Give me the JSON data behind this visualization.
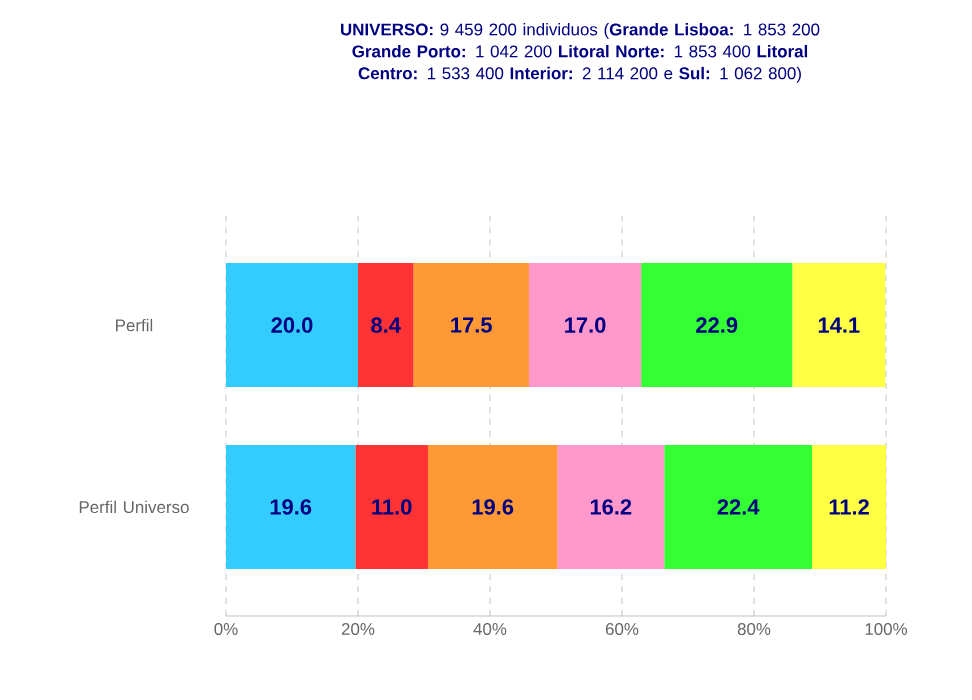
{
  "chart_data": {
    "type": "bar",
    "orientation": "horizontal",
    "stacked": true,
    "title": "**UNIVERSO:** 9 459 200 individuos (**Grande Lisboa:** 1 853 200 **Grande Porto:** 1 042 200  **Litoral Norte:** 1 853 400 **Litoral Centro:** 1 533 400 **Interior:** 2 114 200 e **Sul:** 1 062 800)",
    "categories": [
      "Perfil",
      "Perfil Universo"
    ],
    "series": [
      {
        "color": "#33ccff",
        "values": [
          20.0,
          19.6
        ],
        "value_labels": [
          "20.0",
          "19.6"
        ]
      },
      {
        "color": "#ff3333",
        "values": [
          8.4,
          11.0
        ],
        "value_labels": [
          "8.4",
          "11.0"
        ]
      },
      {
        "color": "#ff9933",
        "values": [
          17.5,
          19.6
        ],
        "value_labels": [
          "17.5",
          "19.6"
        ]
      },
      {
        "color": "#ff99cc",
        "values": [
          17.0,
          16.2
        ],
        "value_labels": [
          "17.0",
          "16.2"
        ]
      },
      {
        "color": "#33ff33",
        "values": [
          22.9,
          22.4
        ],
        "value_labels": [
          "22.9",
          "22.4"
        ]
      },
      {
        "color": "#ffff44",
        "values": [
          14.1,
          11.2
        ],
        "value_labels": [
          "14.1",
          "11.2"
        ]
      }
    ],
    "xlim": [
      0,
      100
    ],
    "xticks": [
      {
        "value": 0,
        "label": "0%"
      },
      {
        "value": 20,
        "label": "20%"
      },
      {
        "value": 40,
        "label": "40%"
      },
      {
        "value": 60,
        "label": "60%"
      },
      {
        "value": 80,
        "label": "80%"
      },
      {
        "value": 100,
        "label": "100%"
      }
    ],
    "grid": "x"
  }
}
